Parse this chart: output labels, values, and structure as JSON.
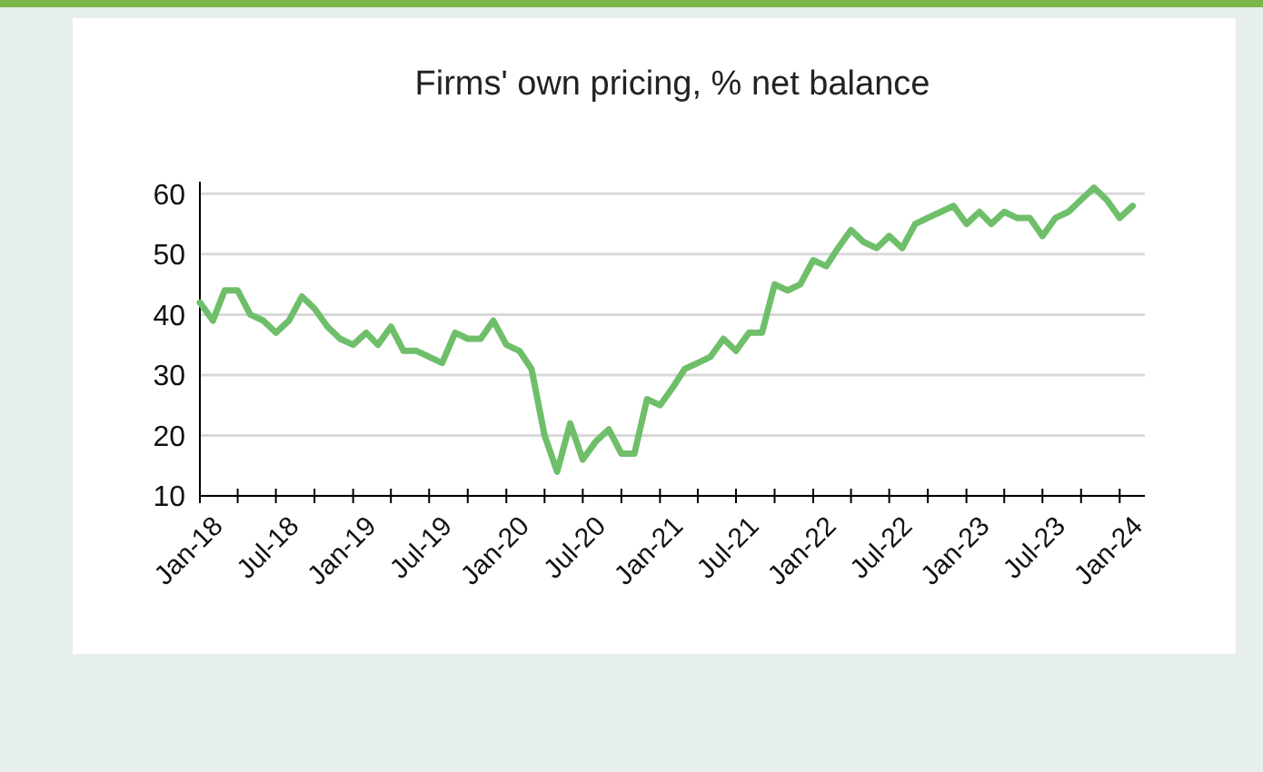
{
  "chart_data": {
    "type": "line",
    "title": "Firms' own pricing, % net balance",
    "x": [
      "2018-01",
      "2018-02",
      "2018-03",
      "2018-04",
      "2018-05",
      "2018-06",
      "2018-07",
      "2018-08",
      "2018-09",
      "2018-10",
      "2018-11",
      "2018-12",
      "2019-01",
      "2019-02",
      "2019-03",
      "2019-04",
      "2019-05",
      "2019-06",
      "2019-07",
      "2019-08",
      "2019-09",
      "2019-10",
      "2019-11",
      "2019-12",
      "2020-01",
      "2020-02",
      "2020-03",
      "2020-04",
      "2020-05",
      "2020-06",
      "2020-07",
      "2020-08",
      "2020-09",
      "2020-10",
      "2020-11",
      "2020-12",
      "2021-01",
      "2021-02",
      "2021-03",
      "2021-04",
      "2021-05",
      "2021-06",
      "2021-07",
      "2021-08",
      "2021-09",
      "2021-10",
      "2021-11",
      "2021-12",
      "2022-01",
      "2022-02",
      "2022-03",
      "2022-04",
      "2022-05",
      "2022-06",
      "2022-07",
      "2022-08",
      "2022-09",
      "2022-10",
      "2022-11",
      "2022-12",
      "2023-01",
      "2023-02",
      "2023-03",
      "2023-04",
      "2023-05",
      "2023-06",
      "2023-07",
      "2023-08",
      "2023-09",
      "2023-10",
      "2023-11",
      "2023-12",
      "2024-01",
      "2024-02"
    ],
    "series": [
      {
        "color": "#6fbf6a",
        "values": [
          42,
          39,
          44,
          44,
          40,
          39,
          37,
          39,
          43,
          41,
          38,
          36,
          35,
          37,
          35,
          38,
          34,
          34,
          33,
          32,
          37,
          36,
          36,
          39,
          35,
          34,
          31,
          20,
          14,
          22,
          16,
          19,
          21,
          17,
          17,
          26,
          25,
          28,
          31,
          32,
          33,
          36,
          34,
          37,
          37,
          45,
          44,
          45,
          49,
          48,
          51,
          54,
          52,
          51,
          53,
          51,
          55,
          56,
          57,
          58,
          55,
          57,
          55,
          57,
          56,
          56,
          53,
          56,
          57,
          59,
          61,
          59,
          56,
          58
        ]
      }
    ],
    "xlim": [
      "2018-01",
      "2024-03"
    ],
    "xticks": [
      {
        "value": "2018-01",
        "label": "Jan-18"
      },
      {
        "value": "2018-04",
        "label": null
      },
      {
        "value": "2018-07",
        "label": "Jul-18"
      },
      {
        "value": "2018-10",
        "label": null
      },
      {
        "value": "2019-01",
        "label": "Jan-19"
      },
      {
        "value": "2019-04",
        "label": null
      },
      {
        "value": "2019-07",
        "label": "Jul-19"
      },
      {
        "value": "2019-10",
        "label": null
      },
      {
        "value": "2020-01",
        "label": "Jan-20"
      },
      {
        "value": "2020-04",
        "label": null
      },
      {
        "value": "2020-07",
        "label": "Jul-20"
      },
      {
        "value": "2020-10",
        "label": null
      },
      {
        "value": "2021-01",
        "label": "Jan-21"
      },
      {
        "value": "2021-04",
        "label": null
      },
      {
        "value": "2021-07",
        "label": "Jul-21"
      },
      {
        "value": "2021-10",
        "label": null
      },
      {
        "value": "2022-01",
        "label": "Jan-22"
      },
      {
        "value": "2022-04",
        "label": null
      },
      {
        "value": "2022-07",
        "label": "Jul-22"
      },
      {
        "value": "2022-10",
        "label": null
      },
      {
        "value": "2023-01",
        "label": "Jan-23"
      },
      {
        "value": "2023-04",
        "label": null
      },
      {
        "value": "2023-07",
        "label": "Jul-23"
      },
      {
        "value": "2023-10",
        "label": null
      },
      {
        "value": "2024-01",
        "label": "Jan-24"
      }
    ],
    "ylim": [
      10,
      62
    ],
    "yticks": [
      10,
      20,
      30,
      40,
      50,
      60
    ],
    "grid": "y",
    "marker": "none",
    "line_style": "solid"
  }
}
